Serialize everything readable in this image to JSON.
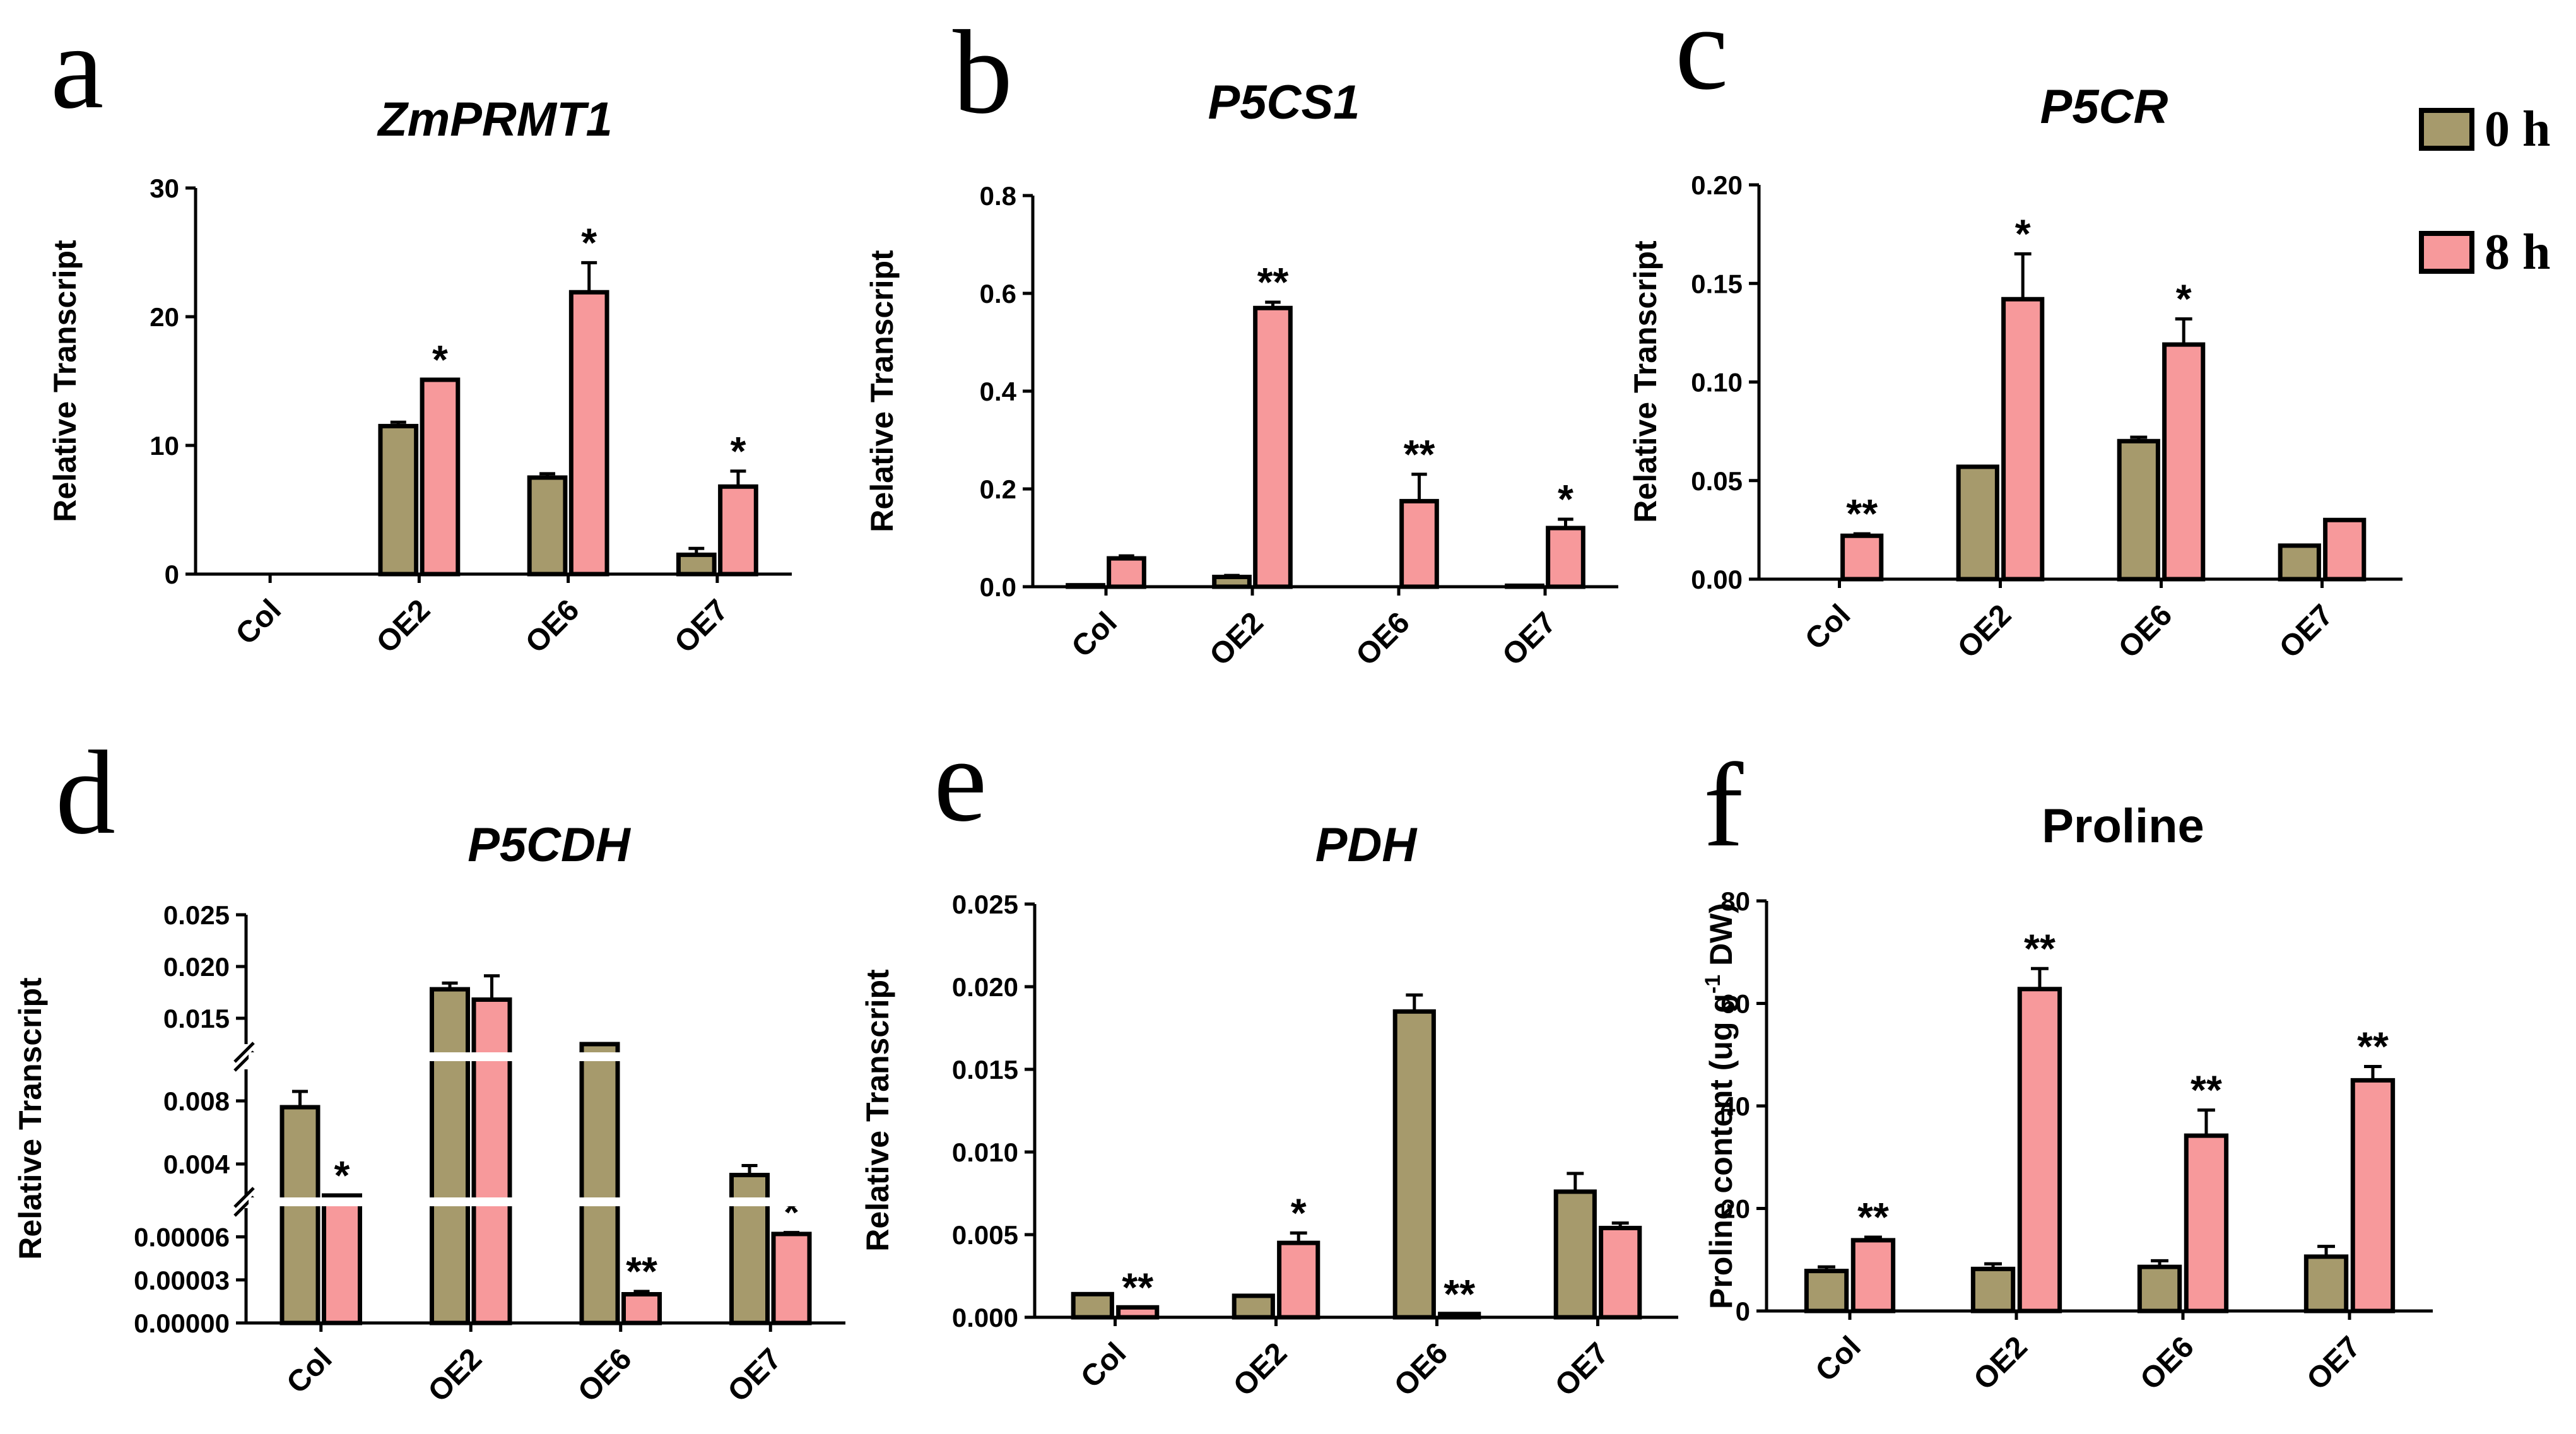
{
  "colors": {
    "h0": "#a69a6c",
    "h8": "#f7999b"
  },
  "legend": [
    {
      "label": "0 h",
      "color_key": "h0"
    },
    {
      "label": "8 h",
      "color_key": "h8"
    }
  ],
  "chart_data": [
    {
      "panel": "a",
      "type": "bar",
      "title": "ZmPRMT1",
      "title_italic": true,
      "ylabel": "Relative Transcript",
      "ylabel_sup": "",
      "ylabel_tail": "",
      "categories": [
        "Col",
        "OE2",
        "OE6",
        "OE7"
      ],
      "ylim": [
        0,
        30
      ],
      "yticks": [
        0,
        10,
        20,
        30
      ],
      "ytick_labels": [
        "0",
        "10",
        "20",
        "30"
      ],
      "series": [
        {
          "name": "0 h",
          "values": [
            0,
            11.5,
            7.5,
            1.5
          ],
          "errors": [
            0,
            0.3,
            0.3,
            0.5
          ]
        },
        {
          "name": "8 h",
          "values": [
            0,
            15.1,
            21.9,
            6.8
          ],
          "errors": [
            0,
            0,
            2.3,
            1.2
          ]
        }
      ],
      "significance": [
        "",
        "*",
        "*",
        "*"
      ]
    },
    {
      "panel": "b",
      "type": "bar",
      "title": "P5CS1",
      "title_italic": true,
      "ylabel": "Relative Transcript",
      "ylabel_sup": "",
      "ylabel_tail": "",
      "categories": [
        "Col",
        "OE2",
        "OE6",
        "OE7"
      ],
      "ylim": [
        0,
        0.8
      ],
      "yticks": [
        0,
        0.2,
        0.4,
        0.6,
        0.8
      ],
      "ytick_labels": [
        "0.0",
        "0.2",
        "0.4",
        "0.6",
        "0.8"
      ],
      "series": [
        {
          "name": "0 h",
          "values": [
            0.003,
            0.02,
            0,
            0.002
          ],
          "errors": [
            0,
            0.003,
            0,
            0
          ]
        },
        {
          "name": "8 h",
          "values": [
            0.058,
            0.57,
            0.175,
            0.12
          ],
          "errors": [
            0.005,
            0.012,
            0.055,
            0.018
          ]
        }
      ],
      "significance": [
        "",
        "**",
        "**",
        "*"
      ]
    },
    {
      "panel": "c",
      "type": "bar",
      "title": "P5CR",
      "title_italic": true,
      "ylabel": "Relative Transcript",
      "ylabel_sup": "",
      "ylabel_tail": "",
      "categories": [
        "Col",
        "OE2",
        "OE6",
        "OE7"
      ],
      "ylim": [
        0,
        0.2
      ],
      "yticks": [
        0,
        0.05,
        0.1,
        0.15,
        0.2
      ],
      "ytick_labels": [
        "0.00",
        "0.05",
        "0.10",
        "0.15",
        "0.20"
      ],
      "series": [
        {
          "name": "0 h",
          "values": [
            0,
            0.057,
            0.07,
            0.017
          ],
          "errors": [
            0,
            0,
            0.002,
            0
          ]
        },
        {
          "name": "8 h",
          "values": [
            0.022,
            0.142,
            0.119,
            0.03
          ],
          "errors": [
            0.001,
            0.023,
            0.013,
            0
          ]
        }
      ],
      "significance": [
        "**",
        "*",
        "*",
        ""
      ]
    },
    {
      "panel": "d",
      "type": "bar",
      "title": "P5CDH",
      "title_italic": true,
      "ylabel": "Relative Transcript",
      "ylabel_sup": "",
      "ylabel_tail": "",
      "categories": [
        "Col",
        "OE2",
        "OE6",
        "OE7"
      ],
      "broken_axis": true,
      "segments": [
        {
          "range": [
            0,
            8e-05
          ],
          "ticks": [
            0,
            3e-05,
            6e-05
          ],
          "tick_labels": [
            "0.00000",
            "0.00003",
            "0.00006"
          ]
        },
        {
          "range": [
            0.002,
            0.01
          ],
          "ticks": [
            0.004,
            0.008
          ],
          "tick_labels": [
            "0.004",
            "0.008"
          ]
        },
        {
          "range": [
            0.0125,
            0.025
          ],
          "ticks": [
            0.015,
            0.02,
            0.025
          ],
          "tick_labels": [
            "0.015",
            "0.020",
            "0.025"
          ]
        }
      ],
      "series": [
        {
          "name": "0 h",
          "values": [
            0.0076,
            0.0178,
            0.0117,
            0.0033
          ],
          "errors": [
            0.001,
            0.0006,
            0.0006,
            0.0006
          ]
        },
        {
          "name": "8 h",
          "values": [
            0.0006,
            0.0168,
            2e-05,
            6.2e-05
          ],
          "errors": [
            0,
            0.0023,
            2e-06,
            1e-06
          ]
        }
      ],
      "significance": [
        "*",
        "",
        "**",
        "*"
      ]
    },
    {
      "panel": "e",
      "type": "bar",
      "title": "PDH",
      "title_italic": true,
      "ylabel": "Relative Transcript",
      "ylabel_sup": "",
      "ylabel_tail": "",
      "categories": [
        "Col",
        "OE2",
        "OE6",
        "OE7"
      ],
      "ylim": [
        0,
        0.025
      ],
      "yticks": [
        0,
        0.005,
        0.01,
        0.015,
        0.02,
        0.025
      ],
      "ytick_labels": [
        "0.000",
        "0.005",
        "0.010",
        "0.015",
        "0.020",
        "0.025"
      ],
      "series": [
        {
          "name": "0 h",
          "values": [
            0.0014,
            0.0013,
            0.0185,
            0.0076
          ],
          "errors": [
            0,
            0,
            0.001,
            0.0011
          ]
        },
        {
          "name": "8 h",
          "values": [
            0.0006,
            0.0045,
            0.0002,
            0.0054
          ],
          "errors": [
            0,
            0.0006,
            0,
            0.0003
          ]
        }
      ],
      "significance": [
        "**",
        "*",
        "**",
        ""
      ]
    },
    {
      "panel": "f",
      "type": "bar",
      "title": "Proline",
      "title_italic": false,
      "ylabel": "Proline content (ug g",
      "ylabel_sup": "-1",
      "ylabel_tail": " DW)",
      "categories": [
        "Col",
        "OE2",
        "OE6",
        "OE7"
      ],
      "ylim": [
        0,
        80
      ],
      "yticks": [
        0,
        20,
        40,
        60,
        80
      ],
      "ytick_labels": [
        "0",
        "20",
        "40",
        "60",
        "80"
      ],
      "series": [
        {
          "name": "0 h",
          "values": [
            7.8,
            8.2,
            8.6,
            10.6
          ],
          "errors": [
            0.8,
            1.0,
            1.2,
            2.0
          ]
        },
        {
          "name": "8 h",
          "values": [
            13.8,
            62.8,
            34.2,
            45.0
          ],
          "errors": [
            0.6,
            4.0,
            5.0,
            2.7
          ]
        }
      ],
      "significance": [
        "**",
        "**",
        "**",
        "**"
      ]
    }
  ]
}
